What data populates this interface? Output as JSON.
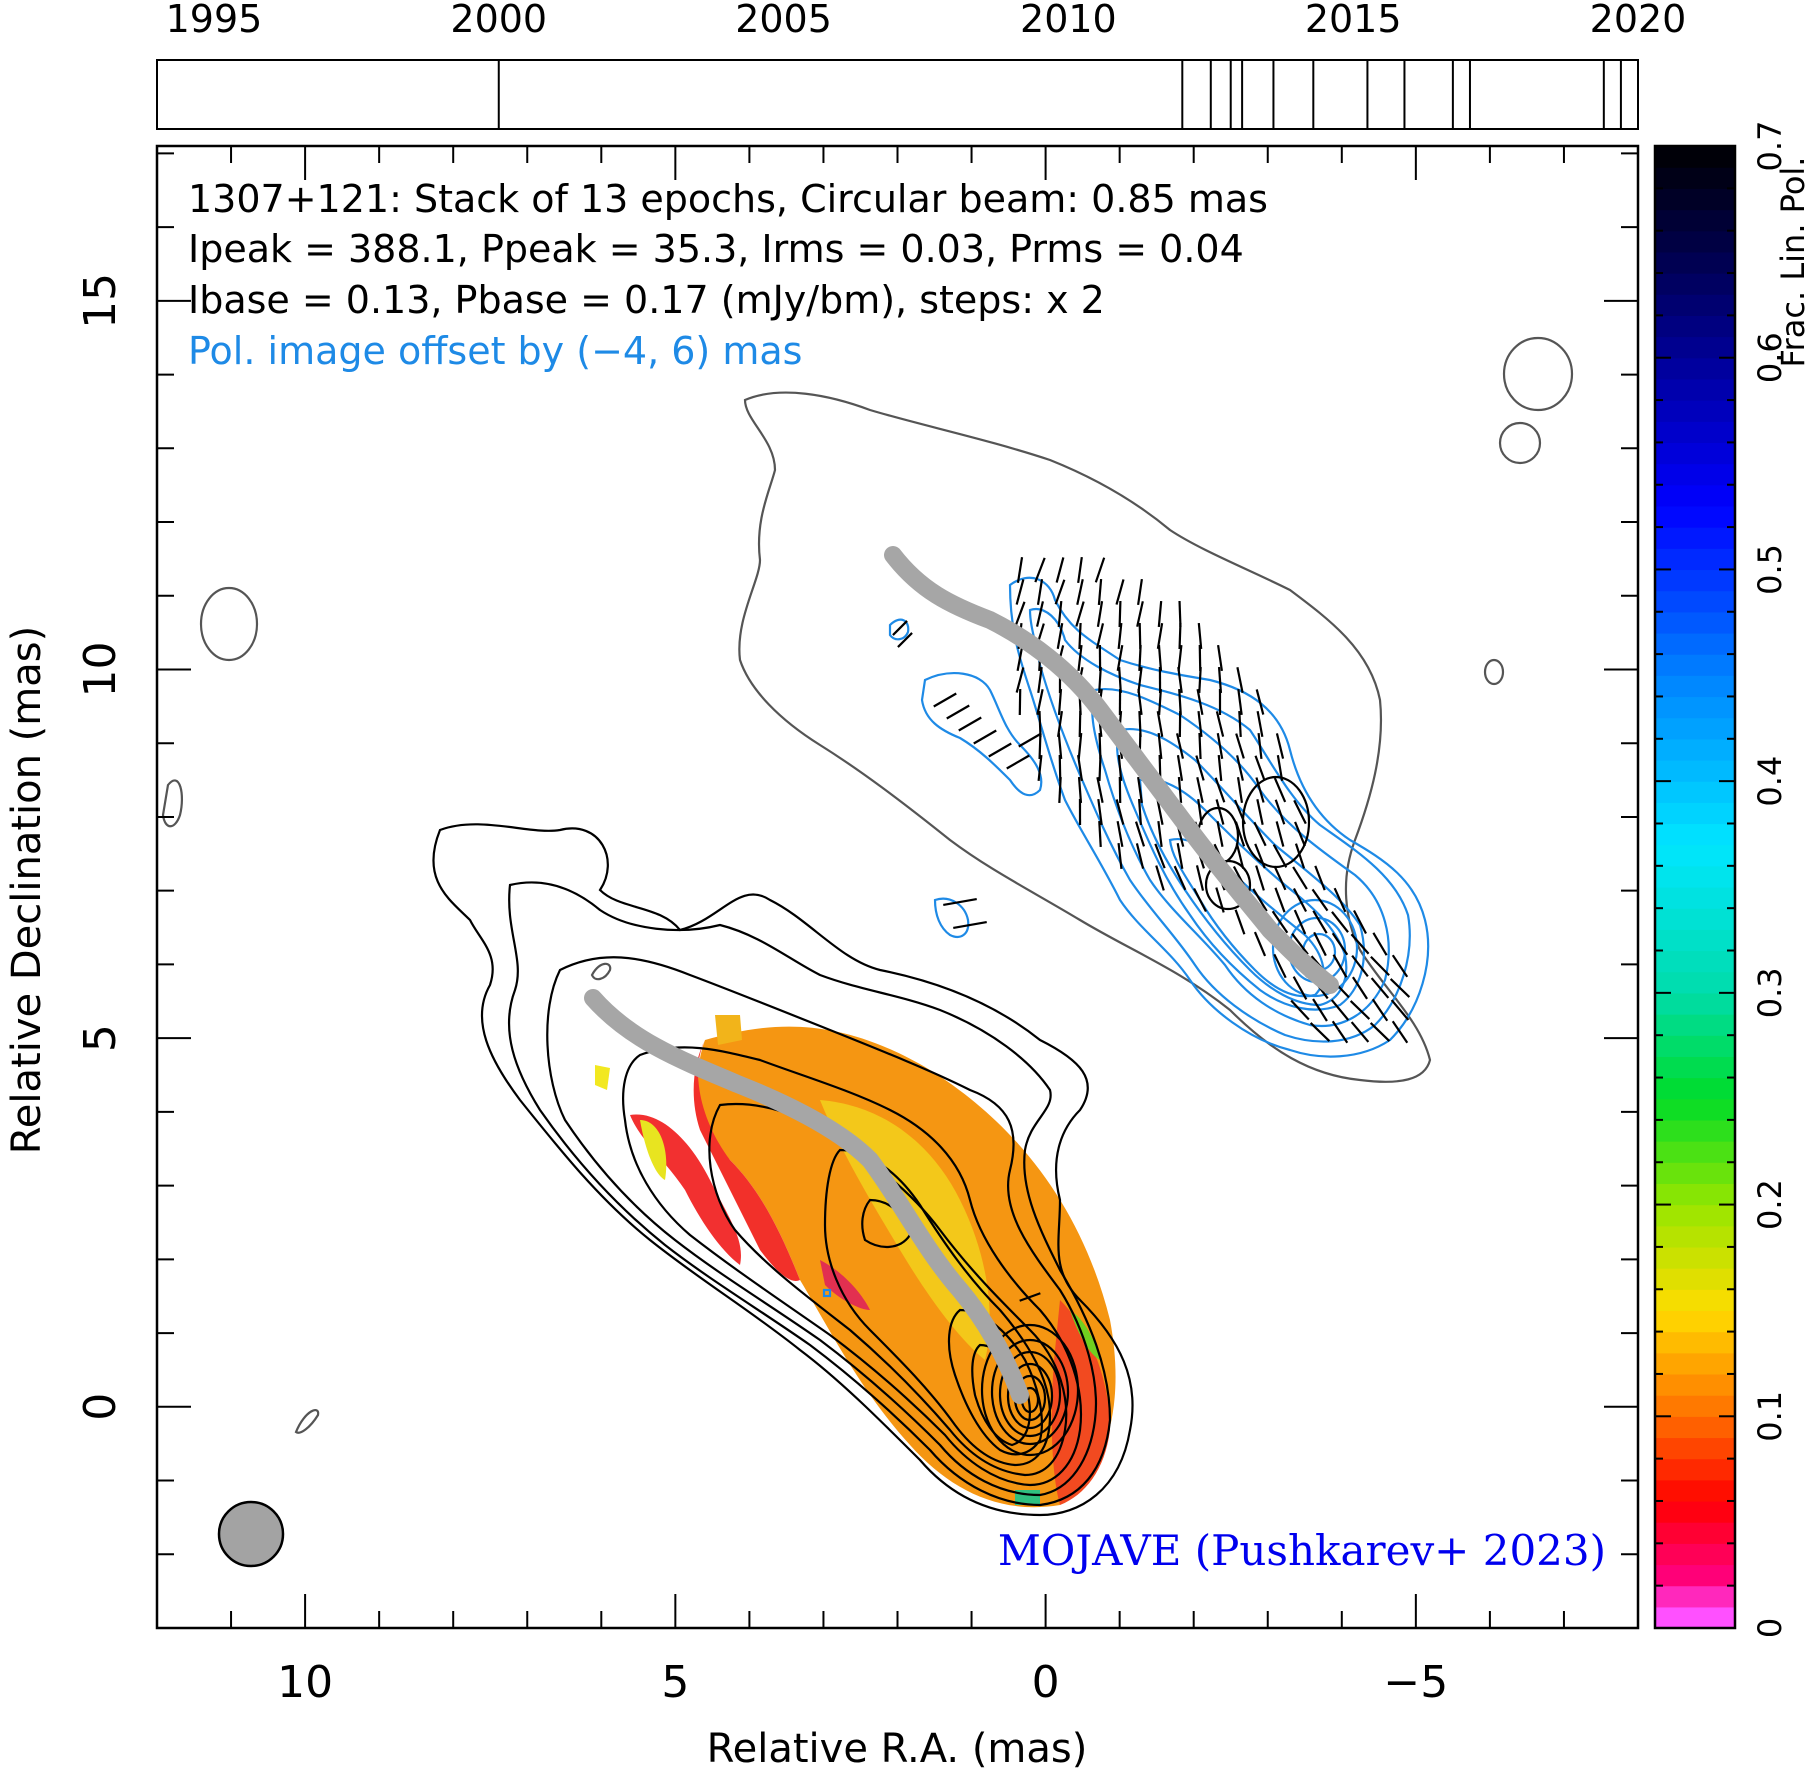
{
  "chart_data": {
    "type": "heatmap",
    "annotations": {
      "line1": "1307+121: Stack of 13 epochs, Circular beam: 0.85 mas",
      "line2": "Ipeak = 388.1, Ppeak = 35.3, Irms = 0.03, Prms = 0.04",
      "line3": "Ibase = 0.13, Pbase = 0.17 (mJy/bm), steps: x 2",
      "line4": "Pol. image offset by (−4, 6) mas",
      "credit": "MOJAVE (Pushkarev+ 2023)"
    },
    "xlabel": "Relative R.A. (mas)",
    "ylabel": "Relative Declination (mas)",
    "xlim": [
      12,
      -8
    ],
    "ylim": [
      -3,
      17.1
    ],
    "x_ticks": [
      10,
      5,
      0,
      -5
    ],
    "x_tick_labels": [
      "10",
      "5",
      "0",
      "−5"
    ],
    "y_ticks": [
      0,
      5,
      10,
      15
    ],
    "y_tick_labels": [
      "0",
      "5",
      "10",
      "15"
    ],
    "colorbar": {
      "label": "Frac. Lin. Pol.",
      "range": [
        0,
        0.7
      ],
      "ticks": [
        0,
        0.1,
        0.2,
        0.3,
        0.4,
        0.5,
        0.6,
        0.7
      ],
      "tick_labels": [
        "0",
        "0.1",
        "0.2",
        "0.3",
        "0.4",
        "0.5",
        "0.6",
        "0.7"
      ]
    },
    "timeline": {
      "range": [
        1994,
        2020
      ],
      "tick_years": [
        1995,
        2000,
        2005,
        2010,
        2015,
        2020
      ],
      "tick_labels": [
        "1995",
        "2000",
        "2005",
        "2010",
        "2015",
        "2020"
      ],
      "epochs": [
        2000.0,
        2012.0,
        2012.5,
        2012.85,
        2013.05,
        2013.6,
        2014.3,
        2015.25,
        2015.9,
        2016.75,
        2017.05,
        2019.4,
        2019.7
      ]
    },
    "beam_diameter_mas": 0.85,
    "colors": {
      "total_intensity_contours": "#000000",
      "polarization_contours": "#1e8ae6",
      "ridge_line": "#a6a6a6",
      "credit_text": "#0000ee",
      "offset_text": "#1e8ae6"
    }
  }
}
